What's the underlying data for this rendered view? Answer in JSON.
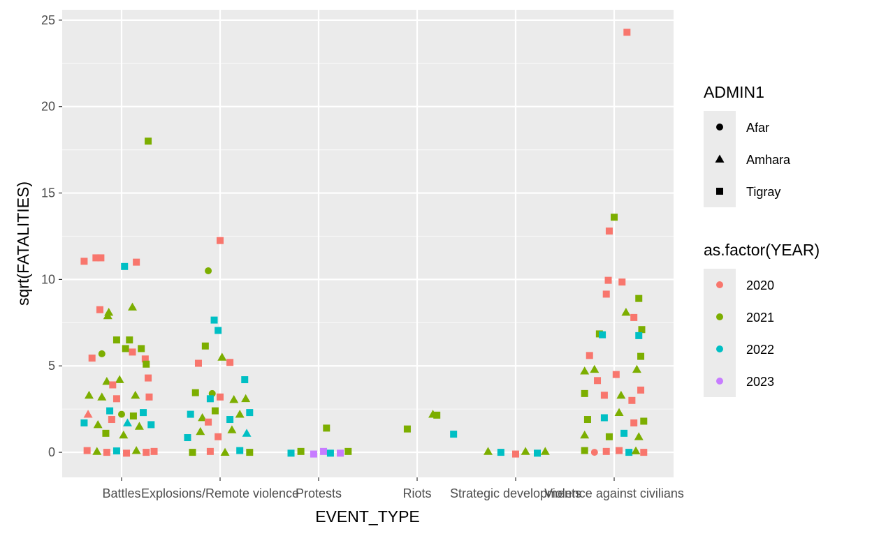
{
  "chart_data": {
    "type": "scatter",
    "xlabel": "EVENT_TYPE",
    "ylabel": "sqrt(FATALITIES)",
    "categories": [
      "Battles",
      "Explosions/Remote violence",
      "Protests",
      "Riots",
      "Strategic developments",
      "Violence against civilians"
    ],
    "ylim": [
      -1.45,
      25.6
    ],
    "y_ticks": [
      0,
      5,
      10,
      15,
      20,
      25
    ],
    "grid": true,
    "legend_position": "right",
    "legends": [
      {
        "title": "ADMIN1",
        "kind": "shape",
        "entries": [
          {
            "label": "Afar",
            "shape": "circle"
          },
          {
            "label": "Amhara",
            "shape": "triangle"
          },
          {
            "label": "Tigray",
            "shape": "square"
          }
        ]
      },
      {
        "title": "as.factor(YEAR)",
        "kind": "color",
        "entries": [
          {
            "label": "2020",
            "color": "#F8766D"
          },
          {
            "label": "2021",
            "color": "#7CAE00"
          },
          {
            "label": "2022",
            "color": "#00BFC4"
          },
          {
            "label": "2023",
            "color": "#C77CFF"
          }
        ]
      }
    ],
    "points": [
      [
        "Battles",
        -0.38,
        11.05,
        "Tigray",
        "2020"
      ],
      [
        "Battles",
        -0.26,
        11.25,
        "Tigray",
        "2020"
      ],
      [
        "Battles",
        -0.21,
        11.25,
        "Tigray",
        "2020"
      ],
      [
        "Battles",
        0.15,
        11.0,
        "Tigray",
        "2020"
      ],
      [
        "Battles",
        0.03,
        10.75,
        "Tigray",
        "2022"
      ],
      [
        "Battles",
        0.27,
        18.0,
        "Tigray",
        "2021"
      ],
      [
        "Battles",
        -0.22,
        8.25,
        "Tigray",
        "2020"
      ],
      [
        "Battles",
        -0.14,
        7.9,
        "Amhara",
        "2021"
      ],
      [
        "Battles",
        -0.13,
        8.1,
        "Amhara",
        "2021"
      ],
      [
        "Battles",
        0.11,
        8.4,
        "Amhara",
        "2021"
      ],
      [
        "Battles",
        -0.05,
        6.5,
        "Tigray",
        "2021"
      ],
      [
        "Battles",
        0.08,
        6.5,
        "Tigray",
        "2021"
      ],
      [
        "Battles",
        0.2,
        6.0,
        "Tigray",
        "2021"
      ],
      [
        "Battles",
        0.04,
        6.0,
        "Tigray",
        "2021"
      ],
      [
        "Battles",
        0.11,
        5.8,
        "Tigray",
        "2020"
      ],
      [
        "Battles",
        -0.2,
        5.7,
        "Afar",
        "2021"
      ],
      [
        "Battles",
        -0.3,
        5.45,
        "Tigray",
        "2020"
      ],
      [
        "Battles",
        0.24,
        5.4,
        "Tigray",
        "2020"
      ],
      [
        "Battles",
        0.25,
        5.1,
        "Tigray",
        "2021"
      ],
      [
        "Battles",
        0.27,
        4.3,
        "Tigray",
        "2020"
      ],
      [
        "Battles",
        -0.15,
        4.1,
        "Amhara",
        "2021"
      ],
      [
        "Battles",
        -0.02,
        4.2,
        "Amhara",
        "2021"
      ],
      [
        "Battles",
        -0.09,
        3.9,
        "Tigray",
        "2020"
      ],
      [
        "Battles",
        -0.33,
        3.3,
        "Amhara",
        "2021"
      ],
      [
        "Battles",
        -0.2,
        3.2,
        "Amhara",
        "2021"
      ],
      [
        "Battles",
        -0.05,
        3.1,
        "Tigray",
        "2020"
      ],
      [
        "Battles",
        0.14,
        3.3,
        "Amhara",
        "2021"
      ],
      [
        "Battles",
        0.28,
        3.2,
        "Tigray",
        "2020"
      ],
      [
        "Battles",
        -0.34,
        2.2,
        "Amhara",
        "2020"
      ],
      [
        "Battles",
        -0.12,
        2.4,
        "Tigray",
        "2022"
      ],
      [
        "Battles",
        0.0,
        2.2,
        "Afar",
        "2021"
      ],
      [
        "Battles",
        0.12,
        2.1,
        "Tigray",
        "2021"
      ],
      [
        "Battles",
        0.22,
        2.3,
        "Tigray",
        "2022"
      ],
      [
        "Battles",
        -0.38,
        1.7,
        "Tigray",
        "2022"
      ],
      [
        "Battles",
        -0.24,
        1.6,
        "Amhara",
        "2021"
      ],
      [
        "Battles",
        -0.1,
        1.9,
        "Tigray",
        "2020"
      ],
      [
        "Battles",
        0.06,
        1.7,
        "Amhara",
        "2022"
      ],
      [
        "Battles",
        0.18,
        1.5,
        "Amhara",
        "2021"
      ],
      [
        "Battles",
        0.3,
        1.6,
        "Tigray",
        "2022"
      ],
      [
        "Battles",
        -0.16,
        1.1,
        "Tigray",
        "2021"
      ],
      [
        "Battles",
        0.02,
        1.0,
        "Amhara",
        "2021"
      ],
      [
        "Battles",
        -0.35,
        0.1,
        "Tigray",
        "2020"
      ],
      [
        "Battles",
        -0.25,
        0.05,
        "Amhara",
        "2021"
      ],
      [
        "Battles",
        -0.15,
        0.0,
        "Tigray",
        "2020"
      ],
      [
        "Battles",
        -0.05,
        0.08,
        "Tigray",
        "2022"
      ],
      [
        "Battles",
        0.05,
        -0.05,
        "Tigray",
        "2020"
      ],
      [
        "Battles",
        0.15,
        0.1,
        "Amhara",
        "2021"
      ],
      [
        "Battles",
        0.25,
        0.0,
        "Tigray",
        "2020"
      ],
      [
        "Battles",
        0.33,
        0.05,
        "Tigray",
        "2020"
      ],
      [
        "Explosions/Remote violence",
        0.0,
        12.25,
        "Tigray",
        "2020"
      ],
      [
        "Explosions/Remote violence",
        -0.12,
        10.5,
        "Afar",
        "2021"
      ],
      [
        "Explosions/Remote violence",
        -0.06,
        7.65,
        "Tigray",
        "2022"
      ],
      [
        "Explosions/Remote violence",
        -0.02,
        7.05,
        "Tigray",
        "2022"
      ],
      [
        "Explosions/Remote violence",
        -0.15,
        6.15,
        "Tigray",
        "2021"
      ],
      [
        "Explosions/Remote violence",
        0.02,
        5.5,
        "Amhara",
        "2021"
      ],
      [
        "Explosions/Remote violence",
        0.1,
        5.2,
        "Tigray",
        "2020"
      ],
      [
        "Explosions/Remote violence",
        -0.22,
        5.15,
        "Tigray",
        "2020"
      ],
      [
        "Explosions/Remote violence",
        0.25,
        4.2,
        "Tigray",
        "2022"
      ],
      [
        "Explosions/Remote violence",
        -0.25,
        3.45,
        "Tigray",
        "2021"
      ],
      [
        "Explosions/Remote violence",
        -0.08,
        3.4,
        "Afar",
        "2021"
      ],
      [
        "Explosions/Remote violence",
        -0.1,
        3.1,
        "Tigray",
        "2022"
      ],
      [
        "Explosions/Remote violence",
        0.0,
        3.2,
        "Tigray",
        "2020"
      ],
      [
        "Explosions/Remote violence",
        0.14,
        3.05,
        "Amhara",
        "2021"
      ],
      [
        "Explosions/Remote violence",
        0.26,
        3.1,
        "Amhara",
        "2021"
      ],
      [
        "Explosions/Remote violence",
        -0.3,
        2.2,
        "Tigray",
        "2022"
      ],
      [
        "Explosions/Remote violence",
        -0.18,
        2.0,
        "Amhara",
        "2021"
      ],
      [
        "Explosions/Remote violence",
        -0.05,
        2.4,
        "Tigray",
        "2021"
      ],
      [
        "Explosions/Remote violence",
        0.1,
        1.9,
        "Tigray",
        "2022"
      ],
      [
        "Explosions/Remote violence",
        0.2,
        2.2,
        "Amhara",
        "2021"
      ],
      [
        "Explosions/Remote violence",
        0.3,
        2.3,
        "Tigray",
        "2022"
      ],
      [
        "Explosions/Remote violence",
        -0.12,
        1.75,
        "Tigray",
        "2020"
      ],
      [
        "Explosions/Remote violence",
        -0.33,
        0.85,
        "Tigray",
        "2022"
      ],
      [
        "Explosions/Remote violence",
        -0.2,
        1.2,
        "Amhara",
        "2021"
      ],
      [
        "Explosions/Remote violence",
        -0.02,
        0.9,
        "Tigray",
        "2020"
      ],
      [
        "Explosions/Remote violence",
        0.12,
        1.3,
        "Amhara",
        "2021"
      ],
      [
        "Explosions/Remote violence",
        0.27,
        1.1,
        "Amhara",
        "2022"
      ],
      [
        "Explosions/Remote violence",
        -0.28,
        0.0,
        "Tigray",
        "2021"
      ],
      [
        "Explosions/Remote violence",
        -0.1,
        0.05,
        "Tigray",
        "2020"
      ],
      [
        "Explosions/Remote violence",
        0.05,
        0.0,
        "Amhara",
        "2021"
      ],
      [
        "Explosions/Remote violence",
        0.2,
        0.1,
        "Tigray",
        "2022"
      ],
      [
        "Explosions/Remote violence",
        0.3,
        0.0,
        "Tigray",
        "2021"
      ],
      [
        "Protests",
        0.08,
        1.4,
        "Tigray",
        "2021"
      ],
      [
        "Protests",
        -0.28,
        -0.05,
        "Tigray",
        "2022"
      ],
      [
        "Protests",
        -0.18,
        0.05,
        "Tigray",
        "2021"
      ],
      [
        "Protests",
        -0.05,
        -0.1,
        "Tigray",
        "2023"
      ],
      [
        "Protests",
        0.05,
        0.05,
        "Tigray",
        "2023"
      ],
      [
        "Protests",
        0.12,
        -0.05,
        "Tigray",
        "2022"
      ],
      [
        "Protests",
        0.22,
        -0.05,
        "Tigray",
        "2023"
      ],
      [
        "Protests",
        0.3,
        0.05,
        "Tigray",
        "2021"
      ],
      [
        "Riots",
        -0.1,
        1.35,
        "Tigray",
        "2021"
      ],
      [
        "Riots",
        0.16,
        2.2,
        "Amhara",
        "2021"
      ],
      [
        "Riots",
        0.2,
        2.15,
        "Tigray",
        "2021"
      ],
      [
        "Riots",
        0.37,
        1.05,
        "Tigray",
        "2022"
      ],
      [
        "Strategic developments",
        -0.28,
        0.05,
        "Amhara",
        "2021"
      ],
      [
        "Strategic developments",
        -0.15,
        0.0,
        "Tigray",
        "2022"
      ],
      [
        "Strategic developments",
        0.0,
        -0.1,
        "Tigray",
        "2020"
      ],
      [
        "Strategic developments",
        0.1,
        0.05,
        "Amhara",
        "2021"
      ],
      [
        "Strategic developments",
        0.22,
        -0.05,
        "Tigray",
        "2022"
      ],
      [
        "Strategic developments",
        0.3,
        0.05,
        "Amhara",
        "2021"
      ],
      [
        "Violence against civilians",
        0.13,
        24.3,
        "Tigray",
        "2020"
      ],
      [
        "Violence against civilians",
        0.0,
        13.6,
        "Tigray",
        "2021"
      ],
      [
        "Violence against civilians",
        -0.05,
        12.8,
        "Tigray",
        "2020"
      ],
      [
        "Violence against civilians",
        -0.06,
        9.95,
        "Tigray",
        "2020"
      ],
      [
        "Violence against civilians",
        0.08,
        9.85,
        "Tigray",
        "2020"
      ],
      [
        "Violence against civilians",
        -0.08,
        9.15,
        "Tigray",
        "2020"
      ],
      [
        "Violence against civilians",
        0.25,
        8.9,
        "Tigray",
        "2021"
      ],
      [
        "Violence against civilians",
        0.12,
        8.1,
        "Amhara",
        "2021"
      ],
      [
        "Violence against civilians",
        0.2,
        7.8,
        "Tigray",
        "2020"
      ],
      [
        "Violence against civilians",
        0.28,
        7.1,
        "Tigray",
        "2021"
      ],
      [
        "Violence against civilians",
        -0.15,
        6.85,
        "Tigray",
        "2021"
      ],
      [
        "Violence against civilians",
        -0.12,
        6.8,
        "Tigray",
        "2022"
      ],
      [
        "Violence against civilians",
        0.25,
        6.75,
        "Tigray",
        "2022"
      ],
      [
        "Violence against civilians",
        -0.25,
        5.6,
        "Tigray",
        "2020"
      ],
      [
        "Violence against civilians",
        0.27,
        5.55,
        "Tigray",
        "2021"
      ],
      [
        "Violence against civilians",
        -0.3,
        4.7,
        "Amhara",
        "2021"
      ],
      [
        "Violence against civilians",
        -0.2,
        4.8,
        "Amhara",
        "2021"
      ],
      [
        "Violence against civilians",
        0.02,
        4.5,
        "Tigray",
        "2020"
      ],
      [
        "Violence against civilians",
        0.23,
        4.8,
        "Amhara",
        "2021"
      ],
      [
        "Violence against civilians",
        -0.17,
        4.15,
        "Tigray",
        "2020"
      ],
      [
        "Violence against civilians",
        -0.3,
        3.4,
        "Tigray",
        "2021"
      ],
      [
        "Violence against civilians",
        -0.1,
        3.3,
        "Tigray",
        "2020"
      ],
      [
        "Violence against civilians",
        0.07,
        3.3,
        "Amhara",
        "2021"
      ],
      [
        "Violence against civilians",
        0.18,
        3.0,
        "Tigray",
        "2020"
      ],
      [
        "Violence against civilians",
        0.27,
        3.6,
        "Tigray",
        "2020"
      ],
      [
        "Violence against civilians",
        -0.27,
        1.9,
        "Tigray",
        "2021"
      ],
      [
        "Violence against civilians",
        -0.1,
        2.0,
        "Tigray",
        "2022"
      ],
      [
        "Violence against civilians",
        0.05,
        2.3,
        "Amhara",
        "2021"
      ],
      [
        "Violence against civilians",
        0.2,
        1.7,
        "Tigray",
        "2020"
      ],
      [
        "Violence against civilians",
        0.3,
        1.8,
        "Tigray",
        "2021"
      ],
      [
        "Violence against civilians",
        -0.3,
        1.0,
        "Amhara",
        "2021"
      ],
      [
        "Violence against civilians",
        -0.05,
        0.9,
        "Tigray",
        "2021"
      ],
      [
        "Violence against civilians",
        0.1,
        1.1,
        "Tigray",
        "2022"
      ],
      [
        "Violence against civilians",
        0.25,
        0.9,
        "Amhara",
        "2021"
      ],
      [
        "Violence against civilians",
        -0.3,
        0.1,
        "Tigray",
        "2021"
      ],
      [
        "Violence against civilians",
        -0.2,
        0.0,
        "Afar",
        "2020"
      ],
      [
        "Violence against civilians",
        -0.08,
        0.05,
        "Tigray",
        "2020"
      ],
      [
        "Violence against civilians",
        0.05,
        0.1,
        "Tigray",
        "2020"
      ],
      [
        "Violence against civilians",
        0.15,
        0.0,
        "Tigray",
        "2022"
      ],
      [
        "Violence against civilians",
        0.22,
        0.08,
        "Amhara",
        "2021"
      ],
      [
        "Violence against civilians",
        0.3,
        0.0,
        "Tigray",
        "2020"
      ]
    ]
  }
}
